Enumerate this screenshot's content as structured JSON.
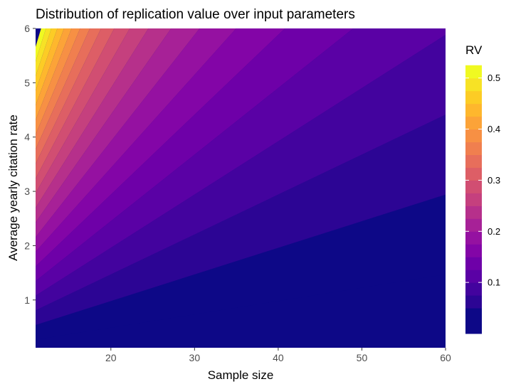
{
  "chart_data": {
    "type": "heatmap",
    "subtype": "filled-contour",
    "title": "Distribution of replication value over input parameters",
    "xlabel": "Sample size",
    "ylabel": "Average yearly citation rate",
    "xlim": [
      11,
      60
    ],
    "ylim": [
      0.12,
      6
    ],
    "x_ticks": [
      20,
      30,
      40,
      50,
      60
    ],
    "y_ticks": [
      1,
      2,
      3,
      4,
      5,
      6
    ],
    "model": "RV proportional to citation_rate / sample_size, contour bands of width 0.025",
    "contour_boundaries": [
      0.025,
      0.05,
      0.075,
      0.1,
      0.125,
      0.15,
      0.175,
      0.2,
      0.225,
      0.25,
      0.275,
      0.3,
      0.325,
      0.35,
      0.375,
      0.4,
      0.425,
      0.45,
      0.475,
      0.5,
      0.525
    ],
    "band_colors": [
      "#0d0887",
      "#2c0594",
      "#43039e",
      "#5a01a5",
      "#6e00a8",
      "#8305a7",
      "#9511a1",
      "#a72197",
      "#b6308b",
      "#c5407e",
      "#d14e72",
      "#dd5e66",
      "#e76e5b",
      "#f07f4f",
      "#f79044",
      "#fca338",
      "#feb72d",
      "#fccc25",
      "#f7e225",
      "#f0f921"
    ],
    "legend": {
      "title": "RV",
      "range": [
        0,
        0.533
      ],
      "labels": [
        "0.1",
        "0.2",
        "0.3",
        "0.4",
        "0.5"
      ],
      "values": [
        0.1,
        0.2,
        0.3,
        0.4,
        0.5
      ],
      "position": "right"
    },
    "background_color": "#0d0887"
  }
}
